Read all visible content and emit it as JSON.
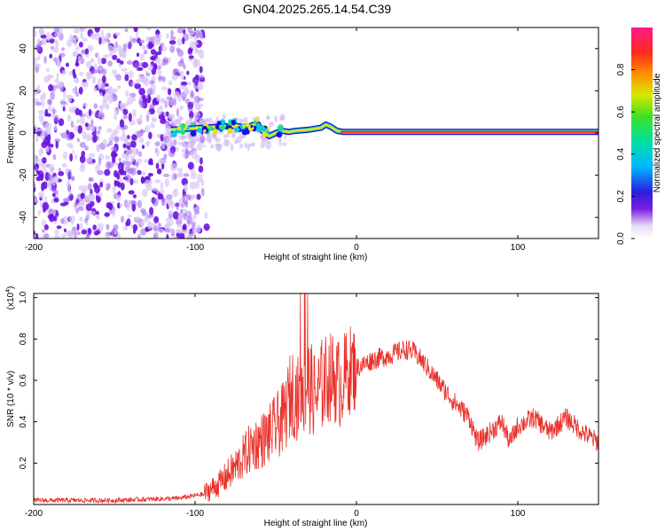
{
  "title": "GN04.2025.265.14.54.C39",
  "chart_data": [
    {
      "type": "heatmap",
      "xlabel": "Height of straight line (km)",
      "ylabel": "Frequency (Hz)",
      "xlim": [
        -200,
        150
      ],
      "ylim": [
        -50,
        50
      ],
      "xticks": [
        -200,
        -100,
        0,
        100
      ],
      "yticks": [
        -40,
        -20,
        0,
        20,
        40
      ],
      "colorbar": {
        "label": "Normalized spectral amplitude",
        "range": [
          0,
          1
        ],
        "ticks": [
          "0.0",
          "0.2",
          "0.4",
          "0.6",
          "0.8"
        ]
      },
      "noise_region_x": [
        -200,
        -95
      ],
      "ridge": {
        "x": [
          -115,
          -105,
          -95,
          -85,
          -75,
          -68,
          -62,
          -58,
          -54,
          -50,
          -46,
          -42,
          -38,
          -30,
          -22,
          -19,
          -16,
          -12,
          -8,
          0,
          50,
          100,
          150
        ],
        "frequency": [
          1.5,
          2.0,
          2.5,
          3.0,
          3.5,
          2.5,
          4.5,
          1.0,
          -1.5,
          0.0,
          1.0,
          0.5,
          1.0,
          1.5,
          2.5,
          4.0,
          3.0,
          1.0,
          0.5,
          0.5,
          0.5,
          0.5,
          0.5
        ]
      }
    },
    {
      "type": "line",
      "xlabel": "Height of straight line (km)",
      "ylabel": "SNR (10 * v/v)",
      "scale_label": "(x10",
      "scale_exponent": "4",
      "xlim": [
        -200,
        150
      ],
      "ylim": [
        0,
        1.02
      ],
      "xticks": [
        -200,
        -100,
        0,
        100
      ],
      "yticks": [
        "0.2",
        "0.4",
        "0.6",
        "0.8",
        "1.0"
      ],
      "series": [
        {
          "color": "#e8312a",
          "x": [
            -200,
            -150,
            -110,
            -95,
            -85,
            -75,
            -65,
            -55,
            -45,
            -40,
            -35,
            -30,
            -25,
            -20,
            -15,
            -10,
            -5,
            0,
            10,
            20,
            30,
            35,
            40,
            50,
            60,
            70,
            75,
            80,
            90,
            95,
            100,
            110,
            120,
            130,
            140,
            150
          ],
          "values": [
            0.02,
            0.02,
            0.03,
            0.05,
            0.1,
            0.18,
            0.28,
            0.33,
            0.42,
            0.55,
            0.5,
            0.58,
            0.52,
            0.6,
            0.62,
            0.58,
            0.65,
            0.66,
            0.7,
            0.72,
            0.75,
            0.74,
            0.7,
            0.6,
            0.5,
            0.42,
            0.3,
            0.33,
            0.4,
            0.3,
            0.38,
            0.42,
            0.35,
            0.42,
            0.35,
            0.3
          ]
        }
      ]
    }
  ]
}
